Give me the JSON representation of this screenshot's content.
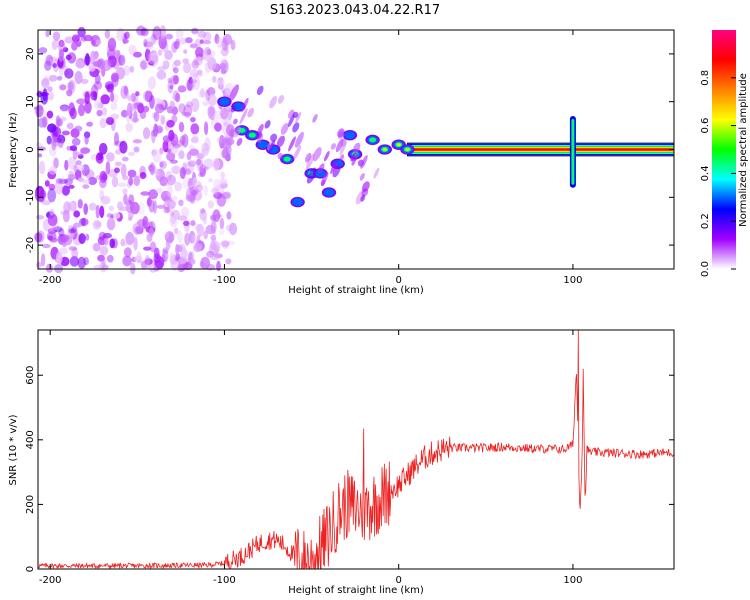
{
  "figure_title": "S163.2023.043.04.22.R17",
  "chart_data": [
    {
      "type": "heatmap",
      "title": "",
      "xlabel": "Height of straight line (km)",
      "ylabel": "Frequency (Hz)",
      "xlim": [
        -207,
        158
      ],
      "ylim": [
        -25,
        25
      ],
      "xticks": [
        -200,
        -100,
        0,
        100
      ],
      "yticks": [
        20,
        10,
        0,
        -10,
        -20
      ],
      "colorbar": {
        "label": "Normalized spectral amplitude",
        "range": [
          0,
          1
        ],
        "ticks": [
          "0.0",
          "0.2",
          "0.4",
          "0.6",
          "0.8"
        ],
        "colormap": [
          "#ffffff",
          "#a000ff",
          "#0000ff",
          "#00ffff",
          "#00ff00",
          "#ffff00",
          "#ff8000",
          "#ff0000",
          "#ff0080"
        ]
      },
      "features": {
        "noise_region_x": [
          -207,
          -95
        ],
        "carrier_frequency_hz": 0,
        "carrier_start_x": 5,
        "carrier_amplitude": 1.0,
        "ridge": [
          {
            "x": -100,
            "y": 10,
            "a": 0.28
          },
          {
            "x": -92,
            "y": 9,
            "a": 0.25
          },
          {
            "x": -90,
            "y": 4,
            "a": 0.45
          },
          {
            "x": -84,
            "y": 3,
            "a": 0.45
          },
          {
            "x": -78,
            "y": 1,
            "a": 0.35
          },
          {
            "x": -72,
            "y": 0,
            "a": 0.3
          },
          {
            "x": -64,
            "y": -2,
            "a": 0.4
          },
          {
            "x": -58,
            "y": -11,
            "a": 0.3
          },
          {
            "x": -50,
            "y": -5,
            "a": 0.4
          },
          {
            "x": -45,
            "y": -5,
            "a": 0.35
          },
          {
            "x": -40,
            "y": -9,
            "a": 0.3
          },
          {
            "x": -35,
            "y": -3,
            "a": 0.3
          },
          {
            "x": -28,
            "y": 3,
            "a": 0.3
          },
          {
            "x": -25,
            "y": -1,
            "a": 0.45
          },
          {
            "x": -15,
            "y": 2,
            "a": 0.45
          },
          {
            "x": -8,
            "y": 0,
            "a": 0.5
          },
          {
            "x": 0,
            "y": 1,
            "a": 0.55
          },
          {
            "x": 5,
            "y": 0,
            "a": 0.7
          }
        ],
        "burst": {
          "x": 100,
          "y_range": [
            -8,
            7
          ]
        }
      }
    },
    {
      "type": "line",
      "title": "",
      "xlabel": "Height of straight line (km)",
      "ylabel": "SNR (10 * v/v)",
      "xlim": [
        -207,
        158
      ],
      "ylim": [
        0,
        740
      ],
      "xticks": [
        -200,
        -100,
        0,
        100
      ],
      "yticks": [
        0,
        200,
        400,
        600
      ],
      "line_color": "#ee2222",
      "series": [
        {
          "x": [
            -207,
            -150,
            -110,
            -100,
            -90,
            -85,
            -80,
            -75,
            -70,
            -65,
            -60,
            -55,
            -50,
            -45,
            -40,
            -35,
            -30,
            -25,
            -20,
            -15,
            -10,
            -5,
            0,
            5,
            10,
            15,
            20,
            25,
            30,
            35,
            40,
            50,
            60,
            70,
            80,
            90,
            95,
            100,
            102,
            104,
            105,
            106,
            107,
            108,
            110,
            120,
            130,
            140,
            150,
            158
          ],
          "y": [
            10,
            10,
            12,
            18,
            40,
            60,
            80,
            90,
            90,
            70,
            40,
            20,
            25,
            60,
            110,
            170,
            200,
            190,
            180,
            200,
            220,
            240,
            260,
            290,
            320,
            345,
            360,
            370,
            375,
            375,
            375,
            375,
            378,
            375,
            372,
            372,
            370,
            385,
            620,
            175,
            300,
            575,
            200,
            370,
            362,
            360,
            358,
            355,
            360,
            360
          ]
        }
      ],
      "spikes": [
        {
          "x": -20,
          "y": 435
        },
        {
          "x": 103,
          "y": 740
        },
        {
          "x": 106,
          "y": 620
        }
      ],
      "noise_amplitude": [
        {
          "x0": -207,
          "x1": -100,
          "amp": 8
        },
        {
          "x0": -100,
          "x1": -60,
          "amp": 30
        },
        {
          "x0": -60,
          "x1": -5,
          "amp": 110
        },
        {
          "x0": -5,
          "x1": 30,
          "amp": 40
        },
        {
          "x0": 30,
          "x1": 158,
          "amp": 14
        }
      ]
    }
  ]
}
